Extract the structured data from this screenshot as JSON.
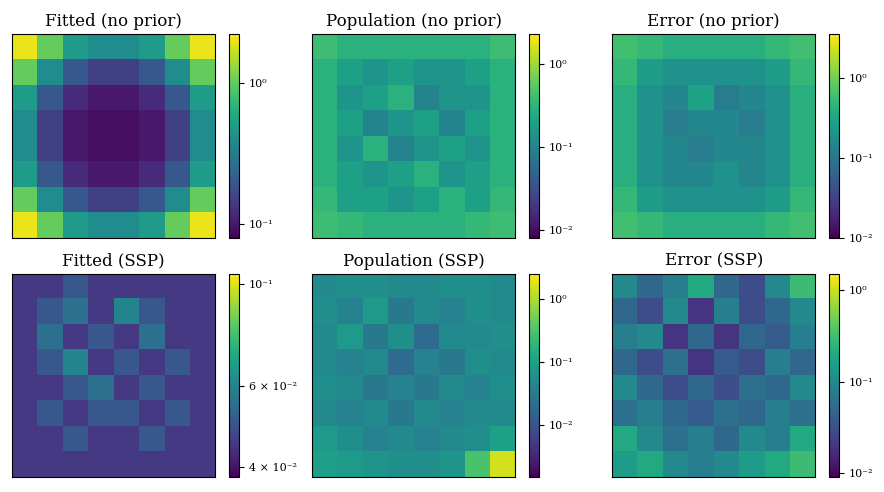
{
  "chart_data": [
    {
      "type": "heatmap",
      "title": "Fitted (no prior)",
      "log": true,
      "tick_labels": false,
      "color": "viridis",
      "cells": [
        [
          2.0,
          1.0,
          0.5,
          0.4,
          0.4,
          0.5,
          1.0,
          2.0
        ],
        [
          1.0,
          0.4,
          0.2,
          0.15,
          0.15,
          0.2,
          0.4,
          1.0
        ],
        [
          0.5,
          0.2,
          0.12,
          0.1,
          0.1,
          0.12,
          0.2,
          0.5
        ],
        [
          0.4,
          0.15,
          0.1,
          0.09,
          0.09,
          0.1,
          0.15,
          0.4
        ],
        [
          0.4,
          0.15,
          0.1,
          0.09,
          0.09,
          0.1,
          0.15,
          0.4
        ],
        [
          0.5,
          0.2,
          0.12,
          0.1,
          0.1,
          0.12,
          0.2,
          0.5
        ],
        [
          1.0,
          0.4,
          0.2,
          0.15,
          0.15,
          0.2,
          0.4,
          1.0
        ],
        [
          2.0,
          1.0,
          0.5,
          0.4,
          0.4,
          0.5,
          1.0,
          2.0
        ]
      ],
      "colorbar_range": [
        0.08,
        2.2
      ],
      "colorbar_ticks": [
        {
          "value": 0.1,
          "label": "10⁻¹"
        },
        {
          "value": 1,
          "label": "10⁰"
        }
      ]
    },
    {
      "type": "heatmap",
      "title": "Population (no prior)",
      "log": true,
      "tick_labels": false,
      "color": "viridis",
      "cells": [
        [
          0.4,
          0.3,
          0.3,
          0.3,
          0.3,
          0.3,
          0.3,
          0.4
        ],
        [
          0.3,
          0.2,
          0.15,
          0.2,
          0.15,
          0.15,
          0.2,
          0.3
        ],
        [
          0.3,
          0.15,
          0.2,
          0.3,
          0.1,
          0.15,
          0.15,
          0.3
        ],
        [
          0.3,
          0.2,
          0.1,
          0.15,
          0.2,
          0.1,
          0.2,
          0.3
        ],
        [
          0.3,
          0.15,
          0.3,
          0.1,
          0.15,
          0.2,
          0.15,
          0.3
        ],
        [
          0.3,
          0.2,
          0.15,
          0.2,
          0.3,
          0.15,
          0.2,
          0.3
        ],
        [
          0.35,
          0.2,
          0.2,
          0.15,
          0.2,
          0.3,
          0.2,
          0.35
        ],
        [
          0.4,
          0.35,
          0.3,
          0.3,
          0.3,
          0.3,
          0.35,
          0.4
        ]
      ],
      "colorbar_range": [
        0.008,
        2.3
      ],
      "colorbar_ticks": [
        {
          "value": 0.01,
          "label": "10⁻²"
        },
        {
          "value": 0.1,
          "label": "10⁻¹"
        },
        {
          "value": 1,
          "label": "10⁰"
        }
      ]
    },
    {
      "type": "heatmap",
      "title": "Error (no prior)",
      "log": true,
      "tick_labels": false,
      "color": "viridis",
      "cells": [
        [
          0.6,
          0.5,
          0.4,
          0.4,
          0.4,
          0.4,
          0.5,
          0.6
        ],
        [
          0.5,
          0.25,
          0.2,
          0.2,
          0.2,
          0.2,
          0.25,
          0.5
        ],
        [
          0.4,
          0.2,
          0.15,
          0.3,
          0.12,
          0.15,
          0.2,
          0.4
        ],
        [
          0.4,
          0.2,
          0.12,
          0.15,
          0.15,
          0.12,
          0.2,
          0.4
        ],
        [
          0.4,
          0.2,
          0.15,
          0.12,
          0.15,
          0.15,
          0.2,
          0.4
        ],
        [
          0.4,
          0.2,
          0.15,
          0.15,
          0.2,
          0.15,
          0.2,
          0.4
        ],
        [
          0.5,
          0.25,
          0.2,
          0.2,
          0.2,
          0.2,
          0.25,
          0.5
        ],
        [
          0.6,
          0.5,
          0.4,
          0.4,
          0.4,
          0.4,
          0.5,
          0.6
        ]
      ],
      "colorbar_range": [
        0.01,
        3.5
      ],
      "colorbar_ticks": [
        {
          "value": 0.01,
          "label": "10⁻²"
        },
        {
          "value": 0.1,
          "label": "10⁻¹"
        },
        {
          "value": 1,
          "label": "10⁰"
        }
      ]
    },
    {
      "type": "heatmap",
      "title": "Fitted (SSP)",
      "log": true,
      "tick_labels": false,
      "color": "viridis",
      "cells": [
        [
          0.045,
          0.045,
          0.05,
          0.045,
          0.045,
          0.045,
          0.045,
          0.045
        ],
        [
          0.045,
          0.05,
          0.055,
          0.045,
          0.06,
          0.05,
          0.045,
          0.045
        ],
        [
          0.045,
          0.055,
          0.045,
          0.05,
          0.045,
          0.055,
          0.045,
          0.045
        ],
        [
          0.045,
          0.05,
          0.06,
          0.045,
          0.05,
          0.045,
          0.05,
          0.045
        ],
        [
          0.045,
          0.045,
          0.05,
          0.055,
          0.045,
          0.05,
          0.045,
          0.045
        ],
        [
          0.045,
          0.05,
          0.045,
          0.05,
          0.05,
          0.045,
          0.05,
          0.045
        ],
        [
          0.045,
          0.045,
          0.05,
          0.045,
          0.045,
          0.05,
          0.045,
          0.045
        ],
        [
          0.045,
          0.045,
          0.045,
          0.045,
          0.045,
          0.045,
          0.045,
          0.045
        ]
      ],
      "colorbar_range": [
        0.038,
        0.105
      ],
      "colorbar_ticks": [
        {
          "value": 0.04,
          "label": "4 × 10⁻²"
        },
        {
          "value": 0.06,
          "label": "6 × 10⁻²"
        },
        {
          "value": 0.1,
          "label": "10⁻¹"
        }
      ]
    },
    {
      "type": "heatmap",
      "title": "Population (SSP)",
      "log": true,
      "tick_labels": false,
      "color": "viridis",
      "cells": [
        [
          0.05,
          0.06,
          0.06,
          0.05,
          0.05,
          0.06,
          0.06,
          0.05
        ],
        [
          0.06,
          0.04,
          0.08,
          0.03,
          0.05,
          0.04,
          0.06,
          0.05
        ],
        [
          0.05,
          0.08,
          0.03,
          0.06,
          0.02,
          0.05,
          0.05,
          0.06
        ],
        [
          0.05,
          0.04,
          0.05,
          0.02,
          0.04,
          0.03,
          0.06,
          0.05
        ],
        [
          0.06,
          0.05,
          0.03,
          0.04,
          0.03,
          0.05,
          0.04,
          0.06
        ],
        [
          0.05,
          0.04,
          0.05,
          0.03,
          0.05,
          0.04,
          0.05,
          0.05
        ],
        [
          0.08,
          0.06,
          0.04,
          0.05,
          0.04,
          0.05,
          0.06,
          0.1
        ],
        [
          0.1,
          0.08,
          0.07,
          0.06,
          0.06,
          0.07,
          0.3,
          1.5
        ]
      ],
      "colorbar_range": [
        0.0015,
        2.5
      ],
      "colorbar_ticks": [
        {
          "value": 0.01,
          "label": "10⁻²"
        },
        {
          "value": 0.1,
          "label": "10⁻¹"
        },
        {
          "value": 1,
          "label": "10⁰"
        }
      ]
    },
    {
      "type": "heatmap",
      "title": "Error (SSP)",
      "log": true,
      "tick_labels": false,
      "color": "viridis",
      "cells": [
        [
          0.1,
          0.05,
          0.08,
          0.2,
          0.05,
          0.03,
          0.1,
          0.3
        ],
        [
          0.05,
          0.03,
          0.1,
          0.02,
          0.08,
          0.03,
          0.05,
          0.1
        ],
        [
          0.08,
          0.1,
          0.02,
          0.05,
          0.02,
          0.05,
          0.04,
          0.08
        ],
        [
          0.05,
          0.03,
          0.06,
          0.02,
          0.04,
          0.03,
          0.08,
          0.05
        ],
        [
          0.1,
          0.05,
          0.03,
          0.05,
          0.03,
          0.06,
          0.05,
          0.1
        ],
        [
          0.06,
          0.08,
          0.05,
          0.04,
          0.06,
          0.05,
          0.08,
          0.06
        ],
        [
          0.2,
          0.1,
          0.06,
          0.08,
          0.05,
          0.1,
          0.08,
          0.2
        ],
        [
          0.15,
          0.2,
          0.1,
          0.08,
          0.1,
          0.15,
          0.2,
          0.3
        ]
      ],
      "colorbar_range": [
        0.009,
        1.5
      ],
      "colorbar_ticks": [
        {
          "value": 0.01,
          "label": "10⁻²"
        },
        {
          "value": 0.1,
          "label": "10⁻¹"
        },
        {
          "value": 1,
          "label": "10⁰"
        }
      ]
    }
  ]
}
